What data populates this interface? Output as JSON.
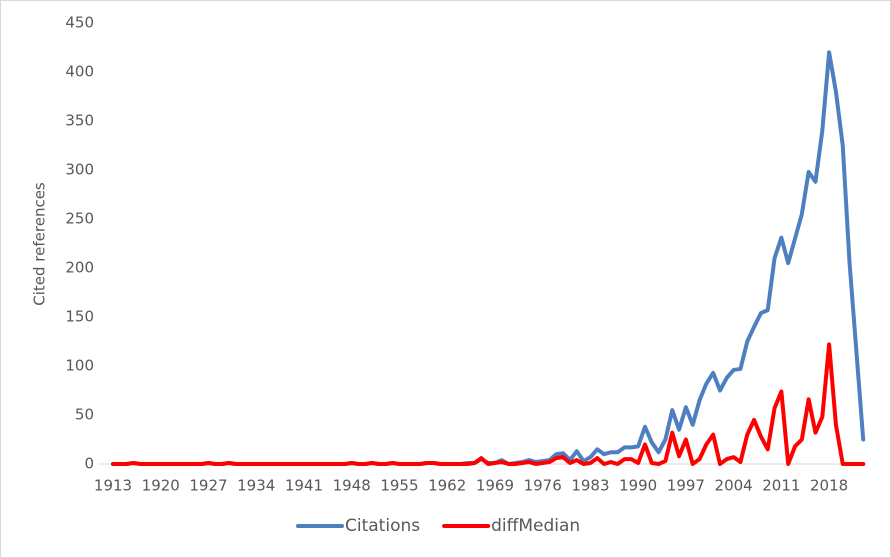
{
  "chart_data": {
    "type": "line",
    "y_label": "Cited references",
    "categories": [
      "1913",
      null,
      null,
      null,
      null,
      null,
      null,
      "1920",
      null,
      null,
      null,
      null,
      null,
      null,
      "1927",
      null,
      null,
      null,
      null,
      null,
      null,
      "1934",
      null,
      null,
      null,
      null,
      null,
      null,
      "1941",
      null,
      null,
      null,
      null,
      null,
      null,
      "1948",
      null,
      null,
      null,
      null,
      null,
      null,
      "1955",
      null,
      null,
      null,
      null,
      null,
      null,
      "1962",
      null,
      null,
      null,
      null,
      null,
      null,
      "1969",
      null,
      null,
      null,
      null,
      null,
      null,
      "1976",
      null,
      null,
      null,
      null,
      null,
      null,
      "1983",
      null,
      null,
      null,
      null,
      null,
      null,
      "1990",
      null,
      null,
      null,
      null,
      null,
      null,
      "1997",
      null,
      null,
      null,
      null,
      null,
      null,
      "2004",
      null,
      null,
      null,
      null,
      null,
      null,
      "2011",
      null,
      null,
      null,
      null,
      null,
      null,
      "2018",
      null,
      null,
      null,
      null,
      null
    ],
    "series": [
      {
        "name": "Citations",
        "color": "#4e7fc0",
        "values": [
          0,
          0,
          0,
          1,
          0,
          0,
          0,
          0,
          0,
          0,
          0,
          0,
          0,
          0,
          1,
          0,
          0,
          1,
          0,
          0,
          0,
          0,
          0,
          0,
          0,
          0,
          0,
          0,
          0,
          0,
          0,
          0,
          0,
          0,
          0,
          1,
          0,
          0,
          1,
          0,
          0,
          1,
          0,
          0,
          0,
          0,
          1,
          1,
          0,
          0,
          0,
          0,
          1,
          1,
          5,
          1,
          1,
          4,
          0,
          1,
          2,
          4,
          2,
          3,
          4,
          10,
          11,
          4,
          13,
          3,
          7,
          15,
          10,
          12,
          12,
          17,
          17,
          18,
          38,
          22,
          12,
          25,
          55,
          35,
          58,
          40,
          65,
          82,
          93,
          75,
          88,
          96,
          97,
          125,
          140,
          154,
          157,
          210,
          231,
          205,
          230,
          255,
          298,
          288,
          340,
          420,
          380,
          325,
          205,
          115,
          25
        ]
      },
      {
        "name": "diffMedian",
        "color": "#ff0000",
        "values": [
          0,
          0,
          0,
          1,
          0,
          0,
          0,
          0,
          0,
          0,
          0,
          0,
          0,
          0,
          1,
          0,
          0,
          1,
          0,
          0,
          0,
          0,
          0,
          0,
          0,
          0,
          0,
          0,
          0,
          0,
          0,
          0,
          0,
          0,
          0,
          1,
          0,
          0,
          1,
          0,
          0,
          1,
          0,
          0,
          0,
          0,
          1,
          1,
          0,
          0,
          0,
          0,
          0,
          1,
          6,
          0,
          1,
          2,
          0,
          0,
          1,
          2,
          0,
          1,
          2,
          6,
          7,
          1,
          4,
          0,
          1,
          6,
          0,
          2,
          0,
          5,
          5,
          1,
          20,
          1,
          0,
          3,
          32,
          8,
          25,
          0,
          5,
          20,
          30,
          0,
          5,
          7,
          2,
          30,
          45,
          28,
          15,
          57,
          74,
          0,
          18,
          25,
          66,
          32,
          48,
          122,
          40,
          0,
          0,
          0,
          0
        ]
      }
    ],
    "ylim": [
      0,
      450
    ],
    "yticks": [
      0,
      50,
      100,
      150,
      200,
      250,
      300,
      350,
      400,
      450
    ],
    "legend": "bottom"
  }
}
